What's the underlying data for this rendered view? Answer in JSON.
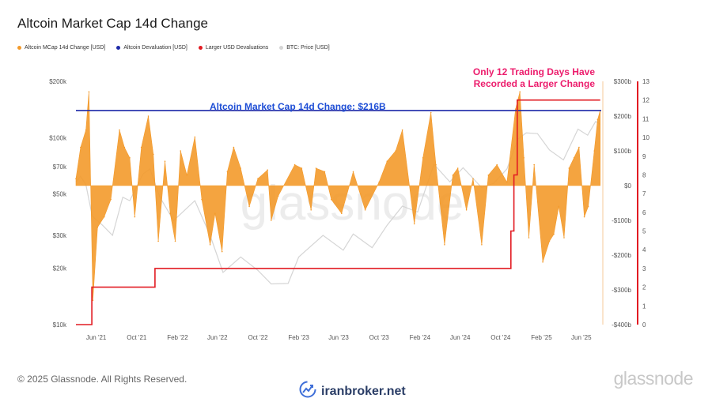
{
  "page": {
    "title": "Altcoin Market Cap 14d Change",
    "copyright": "© 2025 Glassnode. All Rights Reserved.",
    "brand": "glassnode",
    "watermark": "glassnode",
    "site": "iranbroker.net",
    "site_icon": "trend-chart-icon"
  },
  "chart_data": {
    "type": "area",
    "title": "Altcoin Market Cap 14d Change",
    "legend_position": "top-left",
    "legend": [
      {
        "label": "Altcoin MCap 14d Change [USD]",
        "color": "#f39a2b"
      },
      {
        "label": "Altcoin Devaluation [USD]",
        "color": "#1e2aa8"
      },
      {
        "label": "Larger USD Devaluations",
        "color": "#e21b22"
      },
      {
        "label": "BTC: Price [USD]",
        "color": "#d5d5d5"
      }
    ],
    "x_axis": {
      "type": "date",
      "range": [
        "2021-04-01",
        "2025-07-31"
      ],
      "ticks": [
        {
          "date": "2021-06-01",
          "label": "Jun '21"
        },
        {
          "date": "2021-10-01",
          "label": "Oct '21"
        },
        {
          "date": "2022-02-01",
          "label": "Feb '22"
        },
        {
          "date": "2022-06-01",
          "label": "Jun '22"
        },
        {
          "date": "2022-10-01",
          "label": "Oct '22"
        },
        {
          "date": "2023-02-01",
          "label": "Feb '23"
        },
        {
          "date": "2023-06-01",
          "label": "Jun '23"
        },
        {
          "date": "2023-10-01",
          "label": "Oct '23"
        },
        {
          "date": "2024-02-01",
          "label": "Feb '24"
        },
        {
          "date": "2024-06-01",
          "label": "Jun '24"
        },
        {
          "date": "2024-10-01",
          "label": "Oct '24"
        },
        {
          "date": "2025-02-01",
          "label": "Feb '25"
        },
        {
          "date": "2025-06-01",
          "label": "Jun '25"
        }
      ]
    },
    "y_left": {
      "scale": "log",
      "range": [
        10000,
        200000
      ],
      "ticks": [
        {
          "value": 10000,
          "label": "$10k"
        },
        {
          "value": 20000,
          "label": "$20k"
        },
        {
          "value": 30000,
          "label": "$30k"
        },
        {
          "value": 50000,
          "label": "$50k"
        },
        {
          "value": 70000,
          "label": "$70k"
        },
        {
          "value": 100000,
          "label": "$100k"
        },
        {
          "value": 200000,
          "label": "$200k"
        }
      ]
    },
    "y_right": {
      "scale": "linear",
      "unit": "billion USD",
      "range": [
        -400,
        300
      ],
      "ticks": [
        {
          "value": 300,
          "label": "$300b"
        },
        {
          "value": 200,
          "label": "$200b"
        },
        {
          "value": 100,
          "label": "$100b"
        },
        {
          "value": 0,
          "label": "$0"
        },
        {
          "value": -100,
          "label": "-$100b"
        },
        {
          "value": -200,
          "label": "-$200b"
        },
        {
          "value": -300,
          "label": "-$300b"
        },
        {
          "value": -400,
          "label": "-$400b"
        }
      ]
    },
    "y_count": {
      "scale": "linear",
      "range": [
        0,
        13
      ],
      "ticks": [
        0,
        1,
        2,
        3,
        4,
        5,
        6,
        7,
        8,
        9,
        10,
        11,
        12,
        13
      ]
    },
    "series": [
      {
        "name": "Altcoin MCap 14d Change [USD]",
        "color": "#f39a2b",
        "axis": "right",
        "points": [
          [
            "2021-04-01",
            20
          ],
          [
            "2021-04-15",
            110
          ],
          [
            "2021-05-01",
            160
          ],
          [
            "2021-05-10",
            270
          ],
          [
            "2021-05-22",
            -330
          ],
          [
            "2021-06-05",
            -120
          ],
          [
            "2021-06-25",
            -90
          ],
          [
            "2021-07-15",
            -40
          ],
          [
            "2021-08-10",
            160
          ],
          [
            "2021-08-25",
            110
          ],
          [
            "2021-09-10",
            80
          ],
          [
            "2021-09-25",
            -90
          ],
          [
            "2021-10-15",
            110
          ],
          [
            "2021-11-05",
            200
          ],
          [
            "2021-11-20",
            90
          ],
          [
            "2021-12-05",
            -160
          ],
          [
            "2021-12-25",
            70
          ],
          [
            "2022-01-10",
            -80
          ],
          [
            "2022-01-25",
            -160
          ],
          [
            "2022-02-10",
            100
          ],
          [
            "2022-03-01",
            30
          ],
          [
            "2022-03-25",
            140
          ],
          [
            "2022-04-15",
            -40
          ],
          [
            "2022-05-10",
            -170
          ],
          [
            "2022-05-25",
            -80
          ],
          [
            "2022-06-15",
            -190
          ],
          [
            "2022-07-01",
            40
          ],
          [
            "2022-07-20",
            110
          ],
          [
            "2022-08-10",
            50
          ],
          [
            "2022-09-05",
            -60
          ],
          [
            "2022-10-01",
            20
          ],
          [
            "2022-10-30",
            45
          ],
          [
            "2022-11-10",
            -100
          ],
          [
            "2022-12-01",
            -30
          ],
          [
            "2023-01-20",
            60
          ],
          [
            "2023-02-10",
            50
          ],
          [
            "2023-03-10",
            -70
          ],
          [
            "2023-03-25",
            50
          ],
          [
            "2023-04-20",
            40
          ],
          [
            "2023-05-10",
            -40
          ],
          [
            "2023-06-10",
            -80
          ],
          [
            "2023-07-15",
            40
          ],
          [
            "2023-08-20",
            -70
          ],
          [
            "2023-10-01",
            10
          ],
          [
            "2023-10-25",
            70
          ],
          [
            "2023-11-20",
            100
          ],
          [
            "2023-12-10",
            160
          ],
          [
            "2024-01-15",
            -110
          ],
          [
            "2024-02-10",
            80
          ],
          [
            "2024-03-05",
            210
          ],
          [
            "2024-03-20",
            60
          ],
          [
            "2024-04-15",
            -170
          ],
          [
            "2024-05-10",
            30
          ],
          [
            "2024-05-25",
            50
          ],
          [
            "2024-06-20",
            -70
          ],
          [
            "2024-07-10",
            20
          ],
          [
            "2024-08-05",
            -170
          ],
          [
            "2024-08-25",
            30
          ],
          [
            "2024-09-20",
            60
          ],
          [
            "2024-10-20",
            10
          ],
          [
            "2024-11-15",
            220
          ],
          [
            "2024-11-28",
            270
          ],
          [
            "2024-12-10",
            80
          ],
          [
            "2024-12-25",
            -150
          ],
          [
            "2025-01-10",
            60
          ],
          [
            "2025-02-05",
            -220
          ],
          [
            "2025-02-25",
            -160
          ],
          [
            "2025-03-10",
            -140
          ],
          [
            "2025-03-25",
            -60
          ],
          [
            "2025-04-10",
            -150
          ],
          [
            "2025-04-25",
            50
          ],
          [
            "2025-05-10",
            80
          ],
          [
            "2025-05-25",
            110
          ],
          [
            "2025-06-10",
            -90
          ],
          [
            "2025-06-22",
            -60
          ],
          [
            "2025-07-10",
            100
          ],
          [
            "2025-07-20",
            190
          ],
          [
            "2025-07-28",
            216
          ]
        ]
      },
      {
        "name": "BTC: Price [USD]",
        "color": "#d5d5d5",
        "axis": "left",
        "points": [
          [
            "2021-04-01",
            58000
          ],
          [
            "2021-04-15",
            62000
          ],
          [
            "2021-05-01",
            56000
          ],
          [
            "2021-05-20",
            38000
          ],
          [
            "2021-06-20",
            34000
          ],
          [
            "2021-07-20",
            30000
          ],
          [
            "2021-08-20",
            48000
          ],
          [
            "2021-09-10",
            46000
          ],
          [
            "2021-10-20",
            64000
          ],
          [
            "2021-11-10",
            68000
          ],
          [
            "2021-12-10",
            48000
          ],
          [
            "2022-01-20",
            36000
          ],
          [
            "2022-03-25",
            46000
          ],
          [
            "2022-05-10",
            30000
          ],
          [
            "2022-06-18",
            19000
          ],
          [
            "2022-08-10",
            23000
          ],
          [
            "2022-10-01",
            19500
          ],
          [
            "2022-11-10",
            16500
          ],
          [
            "2022-12-31",
            16600
          ],
          [
            "2023-02-01",
            23000
          ],
          [
            "2023-04-15",
            30000
          ],
          [
            "2023-06-15",
            25000
          ],
          [
            "2023-07-15",
            30500
          ],
          [
            "2023-09-10",
            25800
          ],
          [
            "2023-10-25",
            34000
          ],
          [
            "2023-12-10",
            43000
          ],
          [
            "2024-01-25",
            40000
          ],
          [
            "2024-03-14",
            72000
          ],
          [
            "2024-05-01",
            58000
          ],
          [
            "2024-06-10",
            69000
          ],
          [
            "2024-08-05",
            54000
          ],
          [
            "2024-09-10",
            57000
          ],
          [
            "2024-10-20",
            68000
          ],
          [
            "2024-11-22",
            98000
          ],
          [
            "2024-12-17",
            106000
          ],
          [
            "2025-01-20",
            105000
          ],
          [
            "2025-02-25",
            86000
          ],
          [
            "2025-04-08",
            76000
          ],
          [
            "2025-05-22",
            111000
          ],
          [
            "2025-06-20",
            103000
          ],
          [
            "2025-07-14",
            122000
          ],
          [
            "2025-07-28",
            118000
          ]
        ]
      },
      {
        "name": "Larger USD Devaluations",
        "color": "#e21b22",
        "axis": "count",
        "step": true,
        "points": [
          [
            "2021-04-01",
            0
          ],
          [
            "2021-05-19",
            0
          ],
          [
            "2021-05-19",
            2
          ],
          [
            "2021-11-25",
            2
          ],
          [
            "2021-11-25",
            3
          ],
          [
            "2024-11-01",
            3
          ],
          [
            "2024-11-01",
            5
          ],
          [
            "2024-11-10",
            5
          ],
          [
            "2024-11-10",
            8
          ],
          [
            "2024-11-20",
            8
          ],
          [
            "2024-11-20",
            12
          ],
          [
            "2025-07-28",
            12
          ]
        ]
      }
    ],
    "reference_lines": [
      {
        "name": "Altcoin Devaluation [USD]",
        "value": 216,
        "axis": "right",
        "color": "#1e2aa8"
      }
    ],
    "annotations": [
      {
        "text": "Altcoin Market Cap 14d Change: $216B",
        "color": "#1f4fd6"
      },
      {
        "text": "Only 12 Trading Days Have Recorded a Larger Change",
        "lines": [
          "Only 12 Trading Days Have",
          "Recorded a Larger Change"
        ],
        "color": "#ec1c6c"
      }
    ]
  }
}
